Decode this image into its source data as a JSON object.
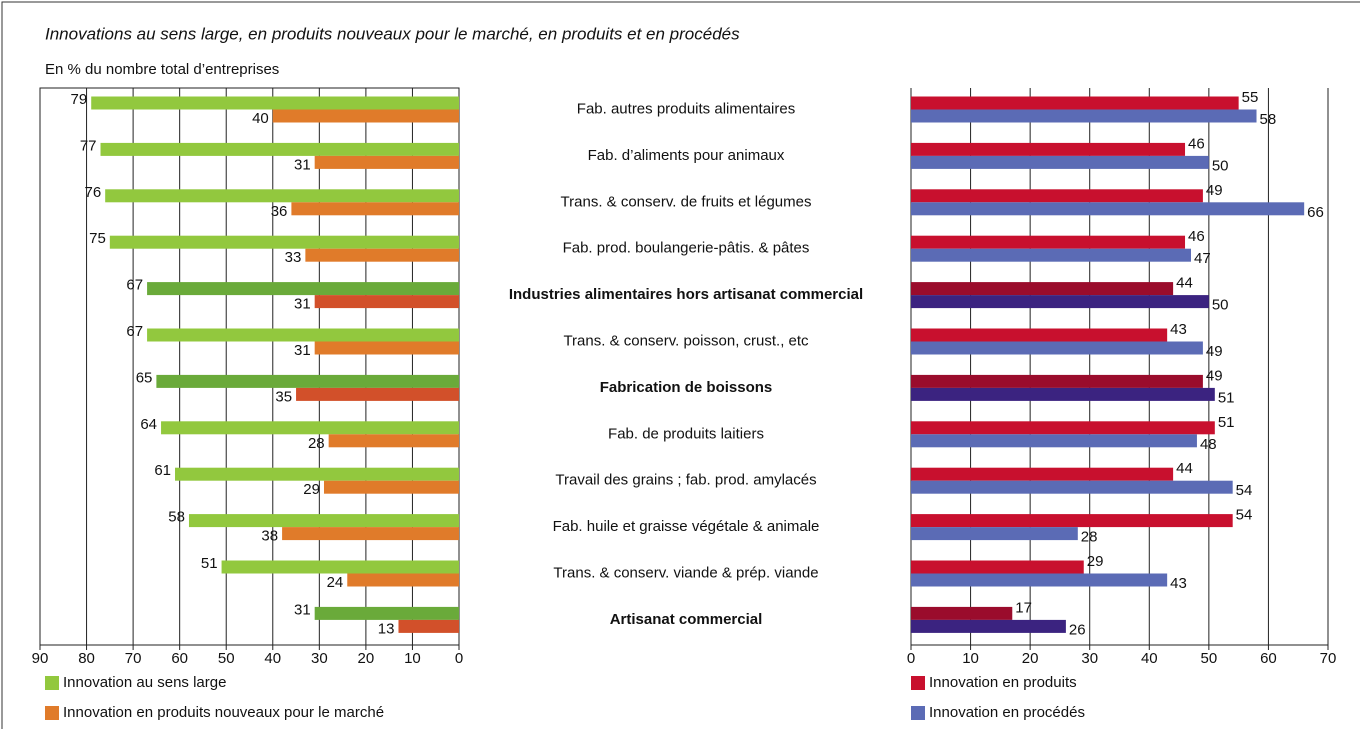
{
  "chart_data": [
    {
      "type": "bar",
      "orientation": "horizontal",
      "title": "Innovations au sens large, en produits nouveaux pour le marché, en produits et en procédés",
      "subtitle": "En % du nombre total d’entreprises",
      "categories": [
        "Fab. autres produits alimentaires",
        "Fab. d’aliments pour animaux",
        "Trans. & conserv. de fruits et légumes",
        "Fab. prod. boulangerie-pâtis. & pâtes",
        "Industries alimentaires hors artisanat commercial",
        "Trans. & conserv. poisson, crust., etc",
        "Fabrication de boissons",
        "Fab. de produits laitiers",
        "Travail des grains ; fab. prod. amylacés",
        "Fab. huile et graisse végétale & animale",
        "Trans. & conserv. viande & prép. viande",
        "Artisanat commercial"
      ],
      "emphasis": [
        false,
        false,
        false,
        false,
        true,
        false,
        true,
        false,
        false,
        false,
        false,
        true
      ],
      "series": [
        {
          "name": "Innovation au sens large",
          "color": "#92c83e",
          "colors": [
            "#92c83e",
            "#92c83e",
            "#92c83e",
            "#92c83e",
            "#6aaa3a",
            "#92c83e",
            "#6aaa3a",
            "#92c83e",
            "#92c83e",
            "#92c83e",
            "#92c83e",
            "#6aaa3a"
          ],
          "values": [
            79,
            77,
            76,
            75,
            67,
            67,
            65,
            64,
            61,
            58,
            51,
            31
          ]
        },
        {
          "name": "Innovation en produits nouveaux pour le marché",
          "color": "#e07b2a",
          "colors": [
            "#e07b2a",
            "#e07b2a",
            "#e07b2a",
            "#e07b2a",
            "#d2502a",
            "#e07b2a",
            "#d2502a",
            "#e07b2a",
            "#e07b2a",
            "#e07b2a",
            "#e07b2a",
            "#d2502a"
          ],
          "values": [
            40,
            31,
            36,
            33,
            31,
            31,
            35,
            28,
            29,
            38,
            24,
            13
          ]
        }
      ],
      "xlim": [
        90,
        0
      ],
      "xticks": [
        90,
        80,
        70,
        60,
        50,
        40,
        30,
        20,
        10,
        0
      ],
      "grid": true
    },
    {
      "type": "bar",
      "orientation": "horizontal",
      "series": [
        {
          "name": "Innovation en produits",
          "color": "#c8102e",
          "colors": [
            "#c8102e",
            "#c8102e",
            "#c8102e",
            "#c8102e",
            "#9a0c2c",
            "#c8102e",
            "#9a0c2c",
            "#c8102e",
            "#c8102e",
            "#c8102e",
            "#c8102e",
            "#9a0c2c"
          ],
          "values": [
            55,
            46,
            49,
            46,
            44,
            43,
            49,
            51,
            44,
            54,
            29,
            17
          ]
        },
        {
          "name": "Innovation en procédés",
          "color": "#5b6bb5",
          "colors": [
            "#5b6bb5",
            "#5b6bb5",
            "#5b6bb5",
            "#5b6bb5",
            "#3b2380",
            "#5b6bb5",
            "#3b2380",
            "#5b6bb5",
            "#5b6bb5",
            "#5b6bb5",
            "#5b6bb5",
            "#3b2380"
          ],
          "values": [
            58,
            50,
            66,
            47,
            50,
            49,
            51,
            48,
            54,
            28,
            43,
            26
          ]
        }
      ],
      "xlim": [
        0,
        70
      ],
      "xticks": [
        0,
        10,
        20,
        30,
        40,
        50,
        60,
        70
      ],
      "grid": true
    }
  ]
}
